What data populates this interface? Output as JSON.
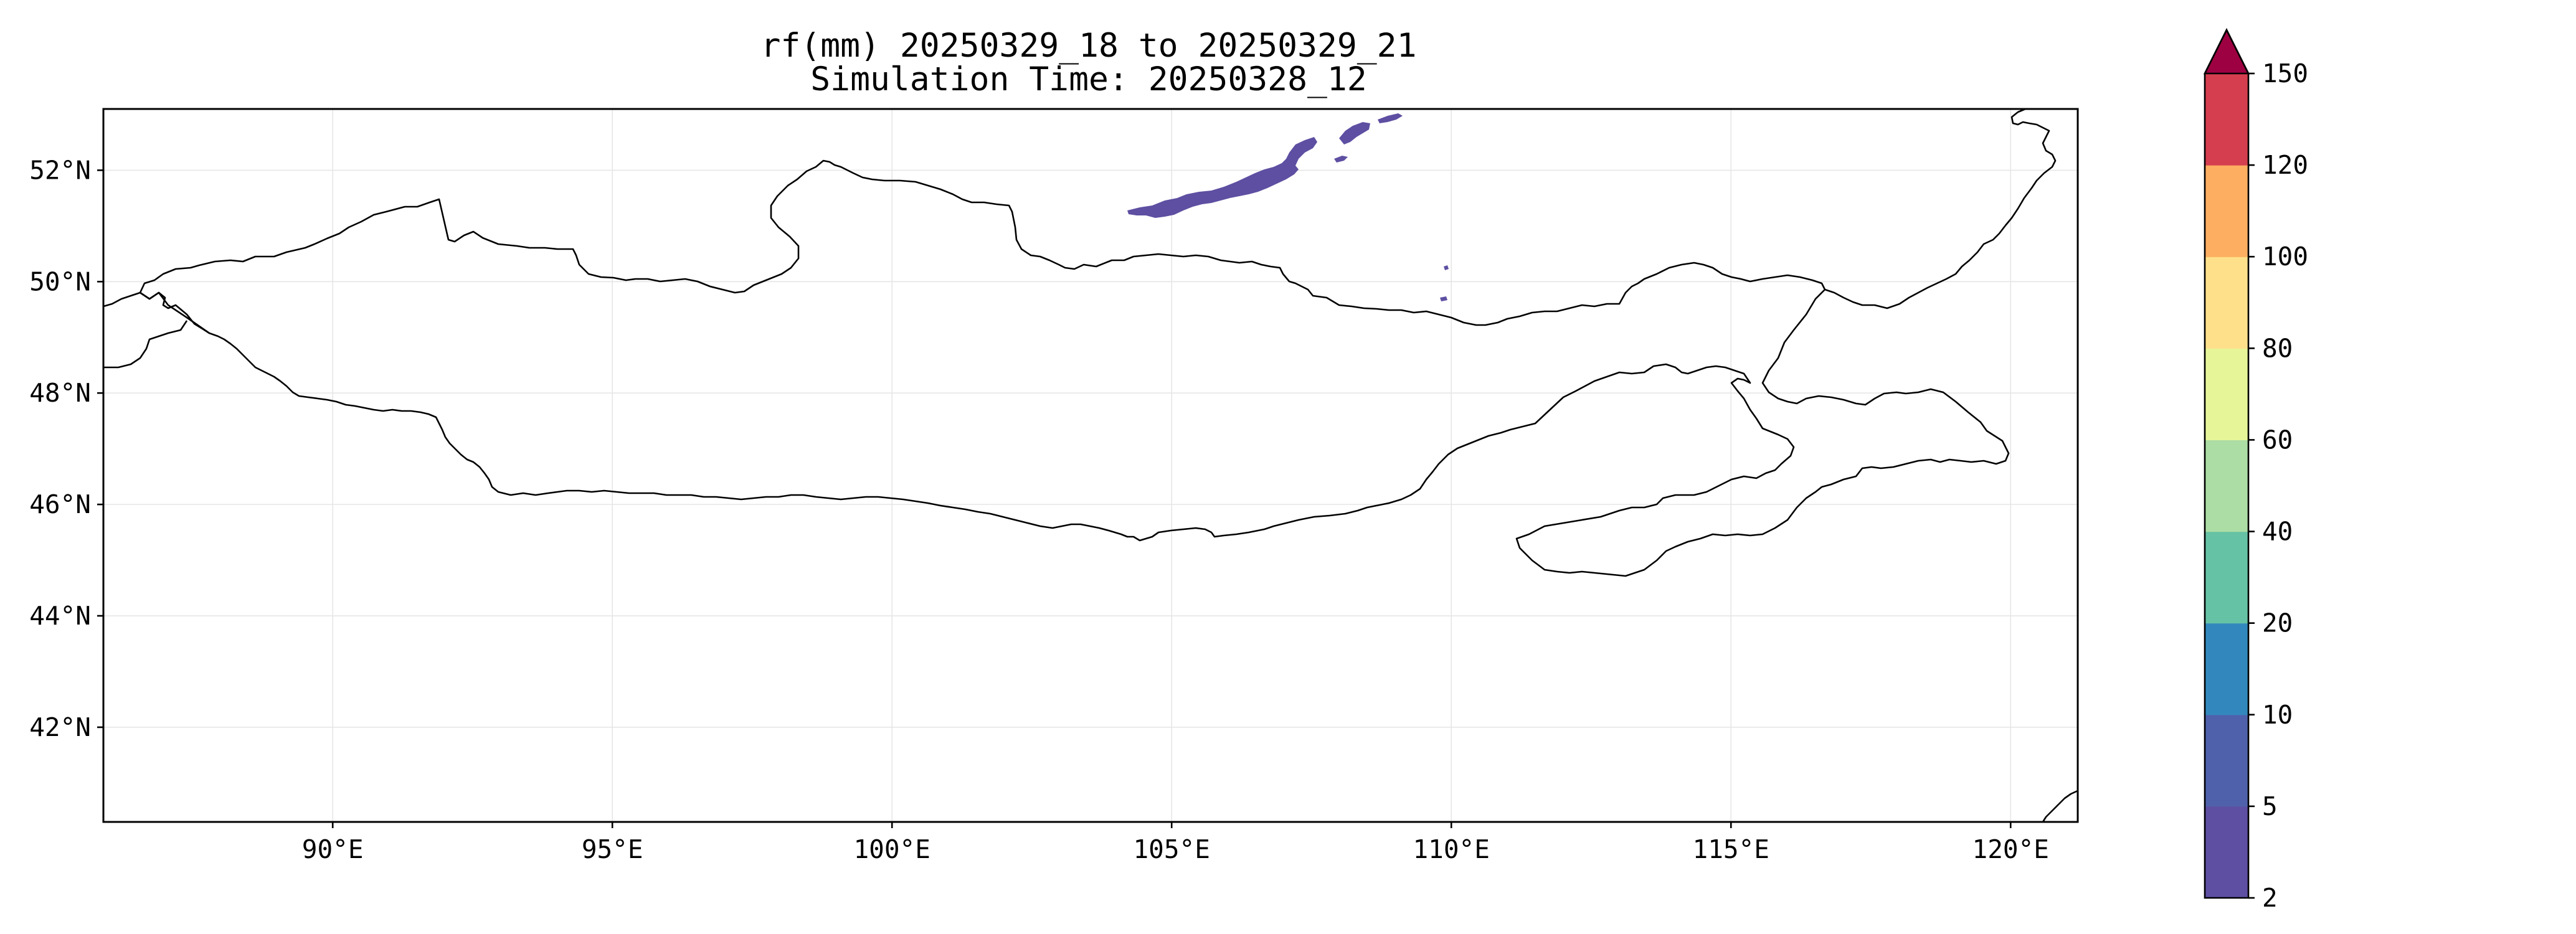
{
  "title": {
    "line1": "rf(mm) 20250329_18 to 20250329_21",
    "line2": "Simulation Time: 20250328_12"
  },
  "map": {
    "lon_range": [
      85.9,
      121.2
    ],
    "lat_range": [
      40.3,
      53.1
    ],
    "lon_ticks": [
      90,
      95,
      100,
      105,
      110,
      115,
      120
    ],
    "lon_labels": [
      "90°E",
      "95°E",
      "100°E",
      "105°E",
      "110°E",
      "115°E",
      "120°E"
    ],
    "lat_ticks": [
      42,
      44,
      46,
      48,
      50,
      52
    ],
    "lat_labels": [
      "42°N",
      "44°N",
      "46°N",
      "48°N",
      "50°N",
      "52°N"
    ],
    "gridlines": true,
    "boundary_color": "#000000",
    "precip_areas": [
      {
        "label": "2–5 mm band north of 51°N, ~104–107°E",
        "color": "#5e4fa2"
      },
      {
        "label": "2–5 mm patches near 108–109°E, ~52.5°N",
        "color": "#5e4fa2"
      },
      {
        "label": "2–5 mm specks near 110°E, ~49.7–50.2°N",
        "color": "#5e4fa2"
      }
    ]
  },
  "colorbar": {
    "levels": [
      2,
      5,
      10,
      20,
      40,
      60,
      80,
      100,
      120,
      150
    ],
    "labels": [
      "2",
      "5",
      "10",
      "20",
      "40",
      "60",
      "80",
      "100",
      "120",
      "150"
    ],
    "colors": [
      "#5e4fa2",
      "#4f61aa",
      "#3288bd",
      "#66c2a5",
      "#abdda4",
      "#e6f598",
      "#fee08b",
      "#fdae61",
      "#d53e4f"
    ],
    "extend_color": "#9e0142",
    "extend": "max"
  }
}
